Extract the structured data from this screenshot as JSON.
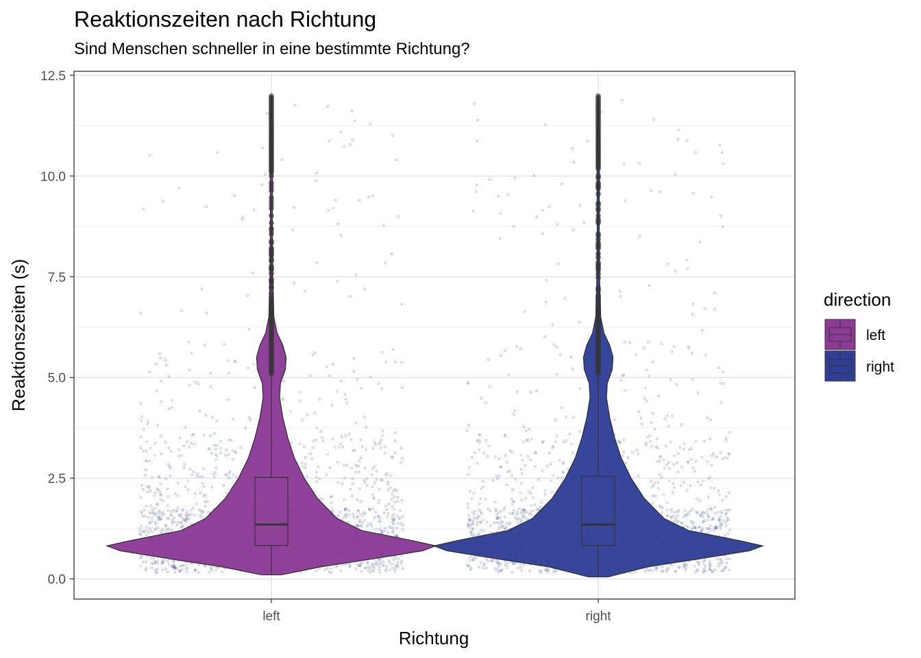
{
  "chart_data": {
    "type": "violin",
    "title": "Reaktionszeiten nach Richtung",
    "subtitle": "Sind Menschen schneller in eine bestimmte Richtung?",
    "xlabel": "Richtung",
    "ylabel": "Reaktionszeiten (s)",
    "categories": [
      "left",
      "right"
    ],
    "ylim": [
      -0.5,
      12.6
    ],
    "yticks": [
      0.0,
      2.5,
      5.0,
      7.5,
      10.0,
      12.5
    ],
    "ytick_labels": [
      "0.0",
      "2.5",
      "5.0",
      "7.5",
      "10.0",
      "12.5"
    ],
    "grid": true,
    "theme": "bw",
    "legend": {
      "title": "direction",
      "position": "right",
      "entries": [
        {
          "label": "left",
          "color": "#8B3A96"
        },
        {
          "label": "right",
          "color": "#2F3E96"
        }
      ]
    },
    "jitter_color": "#3A4A8C",
    "series": [
      {
        "name": "left",
        "color": "#8B3A96",
        "box": {
          "q1": 0.83,
          "median": 1.35,
          "q3": 2.52,
          "whisker_low": 0.1,
          "whisker_high": 5.1
        },
        "outlier_range": [
          5.1,
          12.0
        ],
        "density_profile": [
          [
            0.1,
            0.06
          ],
          [
            0.3,
            0.3
          ],
          [
            0.5,
            0.62
          ],
          [
            0.7,
            0.92
          ],
          [
            0.82,
            1.0
          ],
          [
            0.95,
            0.86
          ],
          [
            1.2,
            0.55
          ],
          [
            1.5,
            0.4
          ],
          [
            2.0,
            0.28
          ],
          [
            2.5,
            0.2
          ],
          [
            3.0,
            0.14
          ],
          [
            3.5,
            0.1
          ],
          [
            4.0,
            0.07
          ],
          [
            4.5,
            0.05
          ],
          [
            4.85,
            0.055
          ],
          [
            5.2,
            0.085
          ],
          [
            5.5,
            0.09
          ],
          [
            5.8,
            0.07
          ],
          [
            6.1,
            0.035
          ],
          [
            6.5,
            0.015
          ],
          [
            7.5,
            0.008
          ],
          [
            9.0,
            0.006
          ],
          [
            10.5,
            0.008
          ],
          [
            11.5,
            0.005
          ],
          [
            12.0,
            0.003
          ]
        ]
      },
      {
        "name": "right",
        "color": "#2F3E96",
        "box": {
          "q1": 0.83,
          "median": 1.35,
          "q3": 2.55,
          "whisker_low": 0.05,
          "whisker_high": 5.1
        },
        "outlier_range": [
          5.1,
          12.0
        ],
        "density_profile": [
          [
            0.05,
            0.06
          ],
          [
            0.3,
            0.3
          ],
          [
            0.5,
            0.62
          ],
          [
            0.7,
            0.92
          ],
          [
            0.82,
            1.0
          ],
          [
            0.95,
            0.86
          ],
          [
            1.2,
            0.55
          ],
          [
            1.5,
            0.4
          ],
          [
            2.0,
            0.28
          ],
          [
            2.5,
            0.2
          ],
          [
            3.0,
            0.14
          ],
          [
            3.5,
            0.1
          ],
          [
            4.0,
            0.07
          ],
          [
            4.5,
            0.05
          ],
          [
            4.85,
            0.055
          ],
          [
            5.2,
            0.085
          ],
          [
            5.5,
            0.09
          ],
          [
            5.8,
            0.07
          ],
          [
            6.1,
            0.035
          ],
          [
            6.5,
            0.015
          ],
          [
            7.5,
            0.008
          ],
          [
            9.0,
            0.006
          ],
          [
            10.5,
            0.008
          ],
          [
            11.5,
            0.005
          ],
          [
            12.0,
            0.003
          ]
        ]
      }
    ]
  }
}
